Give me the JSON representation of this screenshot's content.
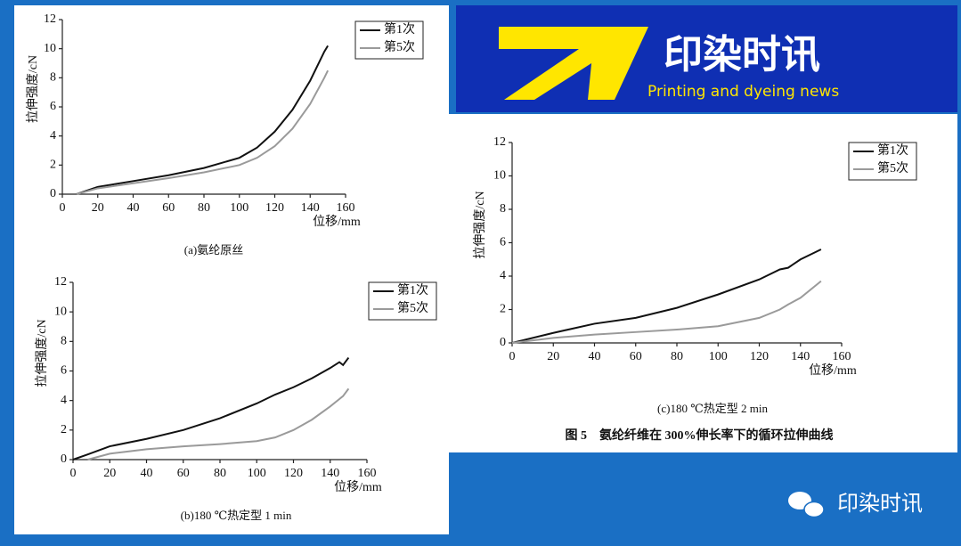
{
  "header": {
    "title": "印染时讯",
    "subtitle": "Printing and dyeing news"
  },
  "figure_caption": "图 5　氨纶纤维在 300%伸长率下的循环拉伸曲线",
  "watermark": "印染时讯",
  "chart_data": [
    {
      "type": "line",
      "caption": "(a)氨纶原丝",
      "xlabel": "位移/mm",
      "ylabel": "拉伸强度/cN",
      "x": [
        8,
        20,
        40,
        60,
        80,
        100,
        110,
        120,
        130,
        140,
        148,
        150
      ],
      "series": [
        {
          "name": "第1次",
          "color": "#111111",
          "values": [
            0,
            0.5,
            0.9,
            1.3,
            1.8,
            2.5,
            3.2,
            4.3,
            5.8,
            7.8,
            9.8,
            10.2
          ]
        },
        {
          "name": "第5次",
          "color": "#9a9a9a",
          "values": [
            0,
            0.4,
            0.75,
            1.1,
            1.5,
            2.0,
            2.5,
            3.3,
            4.5,
            6.2,
            8.0,
            8.5
          ]
        }
      ],
      "xlim": [
        0,
        160
      ],
      "xticks": [
        0,
        20,
        40,
        60,
        80,
        100,
        120,
        140,
        160
      ],
      "ylim": [
        0,
        12
      ],
      "yticks": [
        0,
        2,
        4,
        6,
        8,
        10,
        12
      ]
    },
    {
      "type": "line",
      "caption": "(b)180 ℃热定型 1 min",
      "xlabel": "位移/mm",
      "ylabel": "拉伸强度/cN",
      "x": [
        0,
        8,
        20,
        40,
        60,
        80,
        100,
        110,
        120,
        130,
        140,
        145,
        147,
        150
      ],
      "series": [
        {
          "name": "第1次",
          "color": "#111111",
          "values": [
            0,
            0.35,
            0.9,
            1.4,
            2.0,
            2.8,
            3.8,
            4.4,
            4.9,
            5.5,
            6.2,
            6.6,
            6.4,
            6.9
          ]
        },
        {
          "name": "第5次",
          "color": "#9a9a9a",
          "values": [
            null,
            0,
            0.4,
            0.7,
            0.9,
            1.05,
            1.25,
            1.5,
            2.0,
            2.7,
            3.6,
            4.1,
            4.3,
            4.8
          ]
        }
      ],
      "xlim": [
        0,
        160
      ],
      "xticks": [
        0,
        20,
        40,
        60,
        80,
        100,
        120,
        140,
        160
      ],
      "ylim": [
        0,
        12
      ],
      "yticks": [
        0,
        2,
        4,
        6,
        8,
        10,
        12
      ]
    },
    {
      "type": "line",
      "caption": "(c)180 ℃热定型 2 min",
      "xlabel": "位移/mm",
      "ylabel": "拉伸强度/cN",
      "x": [
        0,
        20,
        40,
        60,
        80,
        100,
        120,
        130,
        134,
        140,
        150
      ],
      "series": [
        {
          "name": "第1次",
          "color": "#111111",
          "values": [
            0,
            0.6,
            1.15,
            1.5,
            2.1,
            2.9,
            3.8,
            4.4,
            4.5,
            5.0,
            5.6
          ]
        },
        {
          "name": "第5次",
          "color": "#9a9a9a",
          "values": [
            0,
            0.3,
            0.5,
            0.65,
            0.8,
            1.0,
            1.5,
            2.0,
            2.3,
            2.7,
            3.7
          ]
        }
      ],
      "xlim": [
        0,
        160
      ],
      "xticks": [
        0,
        20,
        40,
        60,
        80,
        100,
        120,
        140,
        160
      ],
      "ylim": [
        0,
        12
      ],
      "yticks": [
        0,
        2,
        4,
        6,
        8,
        10,
        12
      ]
    }
  ]
}
